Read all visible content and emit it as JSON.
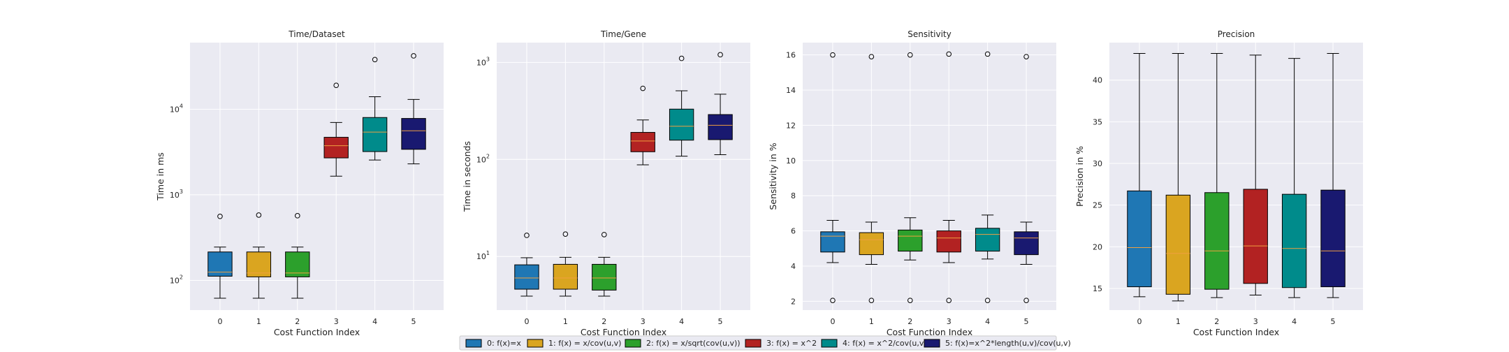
{
  "legend": {
    "entries": [
      {
        "label": "0: f(x)=x",
        "color": "#1f77b4"
      },
      {
        "label": "1: f(x) = x/cov(u,v)",
        "color": "#daa520"
      },
      {
        "label": "2: f(x) = x/sqrt(cov(u,v))",
        "color": "#2ca02c"
      },
      {
        "label": "3: f(x) = x^2",
        "color": "#b22222"
      },
      {
        "label": "4: f(x) = x^2/cov(u,v)",
        "color": "#008b8b"
      },
      {
        "label": "5: f(x)=x^2*length(u,v)/cov(u,v)",
        "color": "#191970"
      }
    ]
  },
  "chart_data": [
    {
      "type": "box",
      "title": "Time/Dataset",
      "xlabel": "Cost Function Index",
      "ylabel": "Time in ms",
      "yscale": "log",
      "ylim": [
        45,
        60000
      ],
      "yticks": [
        {
          "value": 100,
          "label": "10^2"
        },
        {
          "value": 1000,
          "label": "10^3"
        },
        {
          "value": 10000,
          "label": "10^4"
        }
      ],
      "categories": [
        "0",
        "1",
        "2",
        "3",
        "4",
        "5"
      ],
      "boxes": [
        {
          "low": 62,
          "q1": 112,
          "median": 125,
          "q3": 215,
          "high": 245,
          "outliers": [
            560
          ]
        },
        {
          "low": 62,
          "q1": 110,
          "median": 122,
          "q3": 215,
          "high": 245,
          "outliers": [
            580
          ]
        },
        {
          "low": 62,
          "q1": 110,
          "median": 122,
          "q3": 215,
          "high": 245,
          "outliers": [
            570
          ]
        },
        {
          "low": 1650,
          "q1": 2700,
          "median": 3750,
          "q3": 4700,
          "high": 7000,
          "outliers": [
            19000
          ]
        },
        {
          "low": 2550,
          "q1": 3200,
          "median": 5400,
          "q3": 8000,
          "high": 14000,
          "outliers": [
            38000
          ]
        },
        {
          "low": 2300,
          "q1": 3400,
          "median": 5600,
          "q3": 7800,
          "high": 13000,
          "outliers": [
            42000
          ]
        }
      ]
    },
    {
      "type": "box",
      "title": "Time/Gene",
      "xlabel": "Cost Function Index",
      "ylabel": "Time in seconds",
      "yscale": "log",
      "ylim": [
        2.8,
        1600
      ],
      "yticks": [
        {
          "value": 10,
          "label": "10^1"
        },
        {
          "value": 100,
          "label": "10^2"
        },
        {
          "value": 1000,
          "label": "10^3"
        }
      ],
      "categories": [
        "0",
        "1",
        "2",
        "3",
        "4",
        "5"
      ],
      "boxes": [
        {
          "low": 3.9,
          "q1": 4.6,
          "median": 6.0,
          "q3": 8.2,
          "high": 9.7,
          "outliers": [
            16.5
          ]
        },
        {
          "low": 3.9,
          "q1": 4.6,
          "median": 6.0,
          "q3": 8.3,
          "high": 9.8,
          "outliers": [
            17
          ]
        },
        {
          "low": 3.9,
          "q1": 4.5,
          "median": 6.0,
          "q3": 8.3,
          "high": 9.8,
          "outliers": [
            16.8
          ]
        },
        {
          "low": 88,
          "q1": 120,
          "median": 155,
          "q3": 190,
          "high": 255,
          "outliers": [
            540
          ]
        },
        {
          "low": 108,
          "q1": 158,
          "median": 220,
          "q3": 330,
          "high": 510,
          "outliers": [
            1100
          ]
        },
        {
          "low": 112,
          "q1": 160,
          "median": 225,
          "q3": 290,
          "high": 470,
          "outliers": [
            1200
          ]
        }
      ]
    },
    {
      "type": "box",
      "title": "Sensitivity",
      "xlabel": "Cost Function Index",
      "ylabel": "Sensitivity in %",
      "yscale": "linear",
      "ylim": [
        1.5,
        16.7
      ],
      "yticks": [
        {
          "value": 2,
          "label": "2"
        },
        {
          "value": 4,
          "label": "4"
        },
        {
          "value": 6,
          "label": "6"
        },
        {
          "value": 8,
          "label": "8"
        },
        {
          "value": 10,
          "label": "10"
        },
        {
          "value": 12,
          "label": "12"
        },
        {
          "value": 14,
          "label": "14"
        },
        {
          "value": 16,
          "label": "16"
        }
      ],
      "categories": [
        "0",
        "1",
        "2",
        "3",
        "4",
        "5"
      ],
      "boxes": [
        {
          "low": 4.2,
          "q1": 4.8,
          "median": 5.7,
          "q3": 5.95,
          "high": 6.6,
          "outliers": [
            16.0,
            2.05
          ]
        },
        {
          "low": 4.1,
          "q1": 4.65,
          "median": 5.5,
          "q3": 5.9,
          "high": 6.5,
          "outliers": [
            15.9,
            2.05
          ]
        },
        {
          "low": 4.35,
          "q1": 4.85,
          "median": 5.7,
          "q3": 6.05,
          "high": 6.75,
          "outliers": [
            16.0,
            2.05
          ]
        },
        {
          "low": 4.2,
          "q1": 4.8,
          "median": 5.6,
          "q3": 6.0,
          "high": 6.6,
          "outliers": [
            16.05,
            2.05
          ]
        },
        {
          "low": 4.4,
          "q1": 4.85,
          "median": 5.8,
          "q3": 6.15,
          "high": 6.9,
          "outliers": [
            16.05,
            2.05
          ]
        },
        {
          "low": 4.1,
          "q1": 4.65,
          "median": 5.6,
          "q3": 5.95,
          "high": 6.5,
          "outliers": [
            15.9,
            2.05
          ]
        }
      ]
    },
    {
      "type": "box",
      "title": "Precision",
      "xlabel": "Cost Function Index",
      "ylabel": "Precision in %",
      "yscale": "linear",
      "ylim": [
        12.4,
        44.5
      ],
      "yticks": [
        {
          "value": 15,
          "label": "15"
        },
        {
          "value": 20,
          "label": "20"
        },
        {
          "value": 25,
          "label": "25"
        },
        {
          "value": 30,
          "label": "30"
        },
        {
          "value": 35,
          "label": "35"
        },
        {
          "value": 40,
          "label": "40"
        }
      ],
      "categories": [
        "0",
        "1",
        "2",
        "3",
        "4",
        "5"
      ],
      "boxes": [
        {
          "low": 14.0,
          "q1": 15.2,
          "median": 19.9,
          "q3": 26.7,
          "high": 43.2,
          "outliers": []
        },
        {
          "low": 13.5,
          "q1": 14.3,
          "median": 19.2,
          "q3": 26.2,
          "high": 43.2,
          "outliers": []
        },
        {
          "low": 13.9,
          "q1": 14.9,
          "median": 19.5,
          "q3": 26.5,
          "high": 43.2,
          "outliers": []
        },
        {
          "low": 14.2,
          "q1": 15.6,
          "median": 20.1,
          "q3": 26.9,
          "high": 43.0,
          "outliers": []
        },
        {
          "low": 13.9,
          "q1": 15.1,
          "median": 19.8,
          "q3": 26.3,
          "high": 42.6,
          "outliers": []
        },
        {
          "low": 13.9,
          "q1": 15.2,
          "median": 19.5,
          "q3": 26.8,
          "high": 43.2,
          "outliers": []
        }
      ]
    }
  ]
}
